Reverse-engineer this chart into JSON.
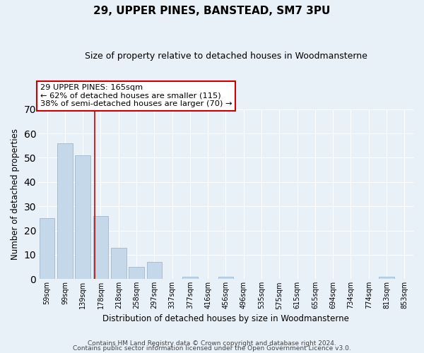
{
  "title": "29, UPPER PINES, BANSTEAD, SM7 3PU",
  "subtitle": "Size of property relative to detached houses in Woodmansterne",
  "xlabel": "Distribution of detached houses by size in Woodmansterne",
  "ylabel": "Number of detached properties",
  "categories": [
    "59sqm",
    "99sqm",
    "139sqm",
    "178sqm",
    "218sqm",
    "258sqm",
    "297sqm",
    "337sqm",
    "377sqm",
    "416sqm",
    "456sqm",
    "496sqm",
    "535sqm",
    "575sqm",
    "615sqm",
    "655sqm",
    "694sqm",
    "734sqm",
    "774sqm",
    "813sqm",
    "853sqm"
  ],
  "values": [
    25,
    56,
    51,
    26,
    13,
    5,
    7,
    0,
    1,
    0,
    1,
    0,
    0,
    0,
    0,
    0,
    0,
    0,
    0,
    1,
    0
  ],
  "bar_color": "#c5d8ea",
  "bar_edge_color": "#a0b8cc",
  "ylim": [
    0,
    70
  ],
  "yticks": [
    0,
    10,
    20,
    30,
    40,
    50,
    60,
    70
  ],
  "vline_x": 2.65,
  "vline_color": "#cc0000",
  "annotation_title": "29 UPPER PINES: 165sqm",
  "annotation_line1": "← 62% of detached houses are smaller (115)",
  "annotation_line2": "38% of semi-detached houses are larger (70) →",
  "annotation_box_color": "#ffffff",
  "annotation_box_edge": "#cc0000",
  "footer1": "Contains HM Land Registry data © Crown copyright and database right 2024.",
  "footer2": "Contains public sector information licensed under the Open Government Licence v3.0.",
  "bg_color": "#e8f0f8",
  "plot_bg_color": "#e8f0f8"
}
